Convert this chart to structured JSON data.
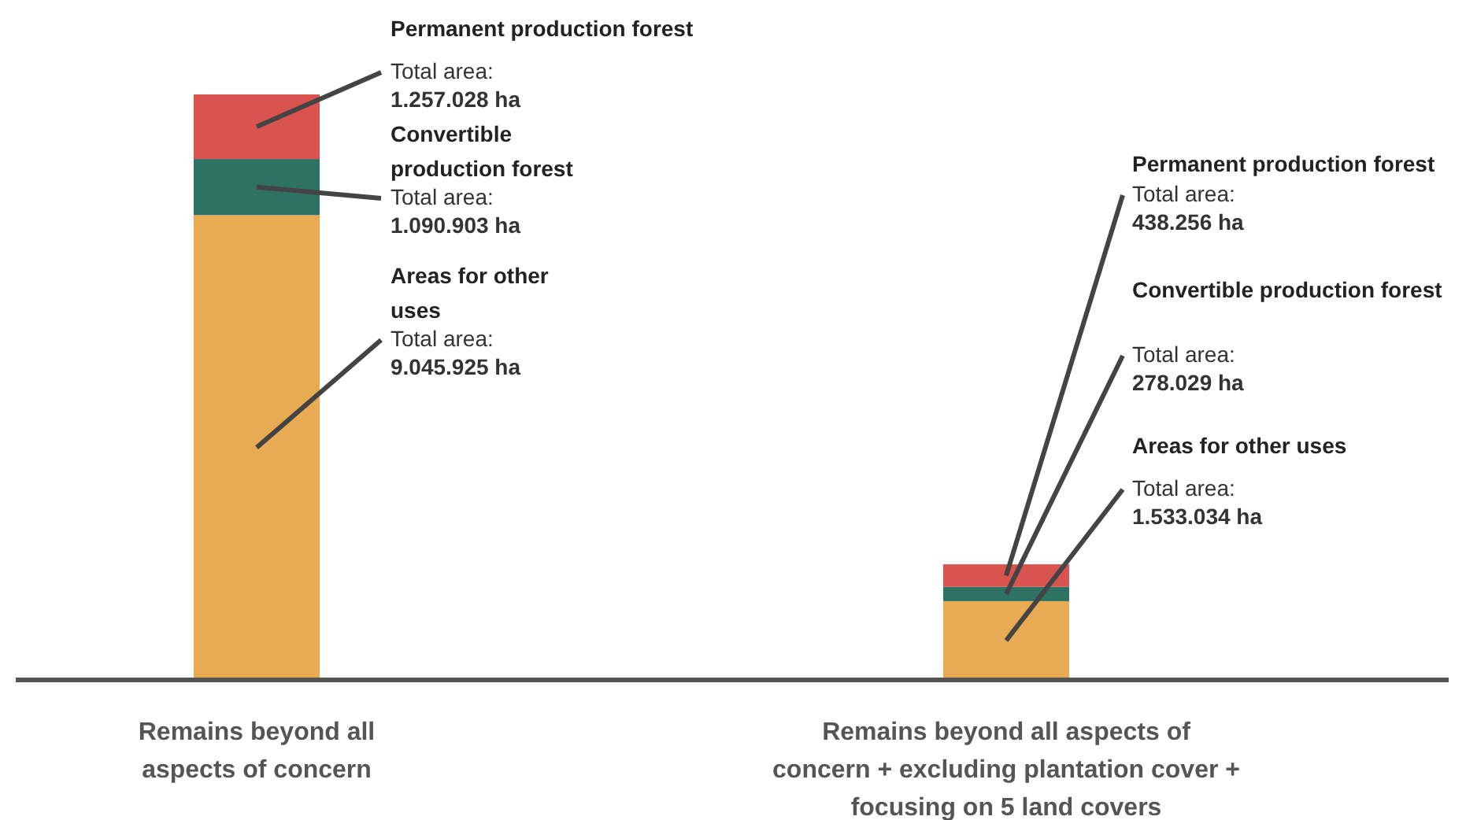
{
  "chart_data": {
    "type": "bar",
    "stacked": true,
    "categories": [
      "Remains beyond all aspects of concern",
      "Remains beyond all aspects of concern + excluding plantation cover + focusing on 5 land covers"
    ],
    "series": [
      {
        "name": "Areas for other uses",
        "color": "#e8aa52",
        "values": [
          9045925,
          1533034
        ],
        "value_labels": [
          "Total area: 9.045.925 ha",
          "Total area: 1.533.034 ha"
        ]
      },
      {
        "name": "Convertible production forest",
        "color": "#2e7264",
        "values": [
          1090903,
          278029
        ],
        "value_labels": [
          "Total area: 1.090.903 ha",
          "Total area: 278.029 ha"
        ]
      },
      {
        "name": "Permanent production forest",
        "color": "#d9534f",
        "values": [
          1257028,
          438256
        ],
        "value_labels": [
          "Total area: 1.257.028 ha",
          "Total area: 438.256 ha"
        ]
      }
    ]
  }
}
